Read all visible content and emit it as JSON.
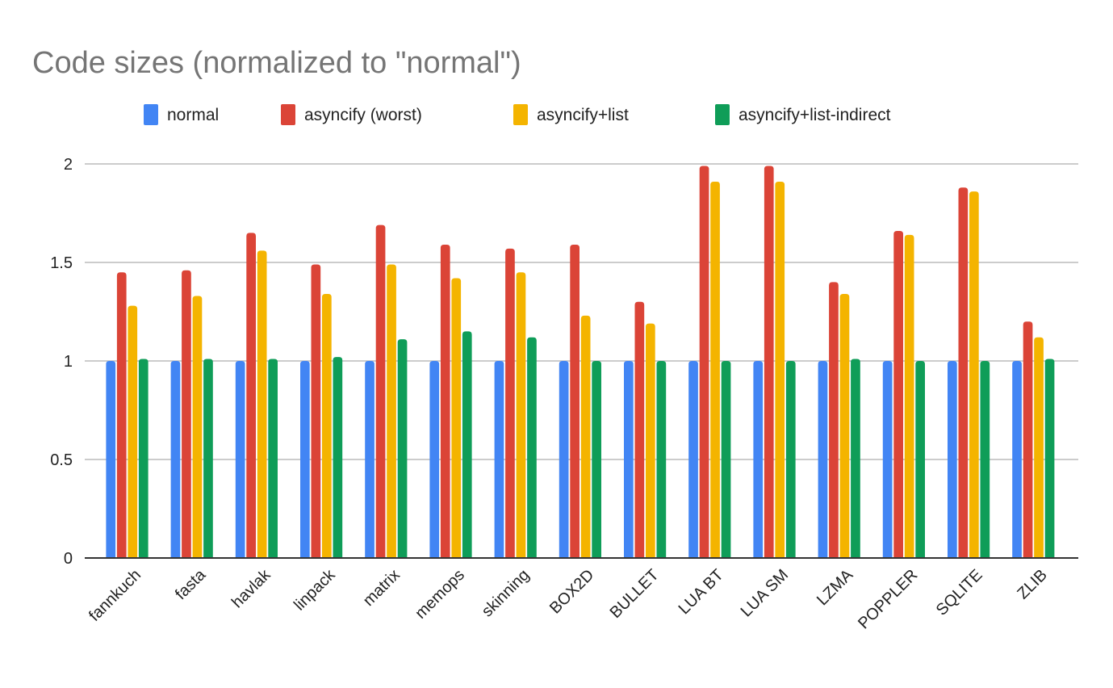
{
  "chart_data": {
    "type": "bar",
    "title": "Code sizes (normalized to \"normal\")",
    "xlabel": "",
    "ylabel": "",
    "ylim": [
      0,
      2
    ],
    "yticks": [
      "0",
      "0.5",
      "1",
      "1.5",
      "2"
    ],
    "ytick_values": [
      0,
      0.5,
      1,
      1.5,
      2
    ],
    "grid": true,
    "legend": "top",
    "categories": [
      "fannkuch",
      "fasta",
      "havlak",
      "linpack",
      "matrix",
      "memops",
      "skinning",
      "BOX2D",
      "BULLET",
      "LUA BT",
      "LUA SM",
      "LZMA",
      "POPPLER",
      "SQLITE",
      "ZLIB"
    ],
    "series": [
      {
        "name": "normal",
        "color": "#4285F4",
        "values": [
          1,
          1,
          1,
          1,
          1,
          1,
          1,
          1,
          1,
          1,
          1,
          1,
          1,
          1,
          1
        ]
      },
      {
        "name": "asyncify (worst)",
        "color": "#DB4437",
        "values": [
          1.45,
          1.46,
          1.65,
          1.49,
          1.69,
          1.59,
          1.57,
          1.59,
          1.3,
          1.99,
          1.99,
          1.4,
          1.66,
          1.88,
          1.2
        ]
      },
      {
        "name": "asyncify+list",
        "color": "#F4B400",
        "values": [
          1.28,
          1.33,
          1.56,
          1.34,
          1.49,
          1.42,
          1.45,
          1.23,
          1.19,
          1.91,
          1.91,
          1.34,
          1.64,
          1.86,
          1.12
        ]
      },
      {
        "name": "asyncify+list-indirect",
        "color": "#0F9D58",
        "values": [
          1.01,
          1.01,
          1.01,
          1.02,
          1.11,
          1.15,
          1.12,
          1.0,
          1.0,
          1.0,
          1.0,
          1.01,
          1.0,
          1.0,
          1.01
        ]
      }
    ]
  }
}
